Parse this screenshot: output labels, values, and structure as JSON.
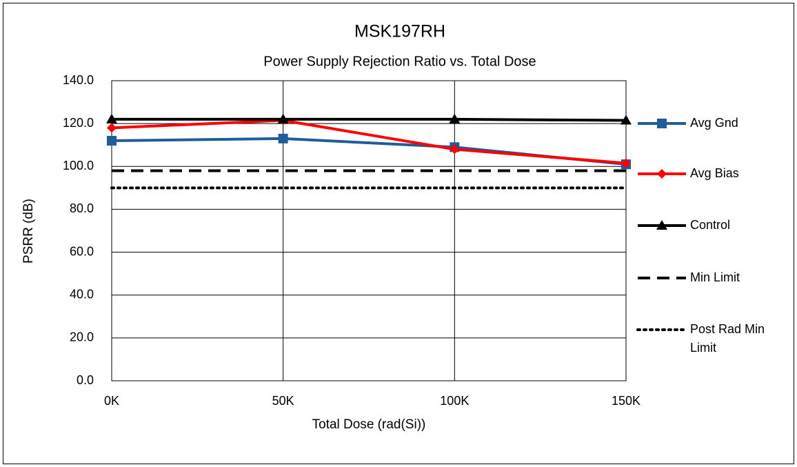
{
  "chart_data": {
    "type": "line",
    "title": "MSK197RH",
    "subtitle": "Power Supply Rejection Ratio vs. Total Dose",
    "x_label": "Total Dose (rad(Si))",
    "y_label": "PSRR (dB)",
    "categories": [
      "0K",
      "50K",
      "100K",
      "150K"
    ],
    "series": [
      {
        "name": "Avg Gnd",
        "color": "#1f5c99",
        "marker": "square",
        "dash": "solid",
        "values": [
          112,
          113,
          109,
          101
        ]
      },
      {
        "name": "Avg Bias",
        "color": "#ff0000",
        "marker": "diamond",
        "dash": "solid",
        "values": [
          118,
          121.5,
          108,
          101.5
        ]
      },
      {
        "name": "Control",
        "color": "#000000",
        "marker": "triangle",
        "dash": "solid",
        "values": [
          122,
          122,
          122,
          121.5
        ]
      },
      {
        "name": "Min Limit",
        "color": "#000000",
        "marker": "none",
        "dash": "dashed",
        "values": [
          98,
          98,
          98,
          98
        ]
      },
      {
        "name": "Post Rad Min Limit",
        "color": "#000000",
        "marker": "none",
        "dash": "dotted",
        "values": [
          90,
          90,
          90,
          90
        ]
      }
    ],
    "ylim": [
      0,
      140
    ],
    "yticks": [
      {
        "value": 0,
        "label": "0.0"
      },
      {
        "value": 20,
        "label": "20.0"
      },
      {
        "value": 40,
        "label": "40.0"
      },
      {
        "value": 60,
        "label": "60.0"
      },
      {
        "value": 80,
        "label": "80.0"
      },
      {
        "value": 100,
        "label": "100.0"
      },
      {
        "value": 120,
        "label": "120.0"
      },
      {
        "value": 140,
        "label": "140.0"
      }
    ],
    "grid": true,
    "legend": "right"
  }
}
